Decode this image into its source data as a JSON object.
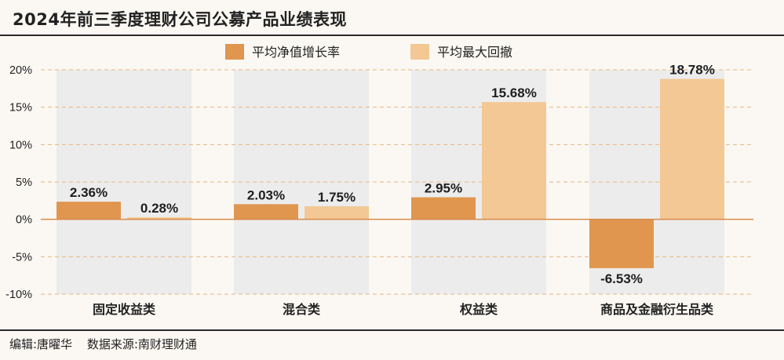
{
  "title": "2024年前三季度理财公司公募产品业绩表现",
  "footer": {
    "editor": "编辑:唐曜华",
    "source": "数据来源:南财理财通"
  },
  "colors": {
    "series1": "#e0964f",
    "series2": "#f3c894",
    "band": "#ececec",
    "grid": "#e6b583",
    "zero": "#d88a48"
  },
  "chart_data": {
    "type": "bar",
    "categories": [
      "固定收益类",
      "混合类",
      "权益类",
      "商品及金融衍生品类"
    ],
    "series": [
      {
        "name": "平均净值增长率",
        "values": [
          2.36,
          2.03,
          2.95,
          -6.53
        ],
        "labels": [
          "2.36%",
          "2.03%",
          "2.95%",
          "-6.53%"
        ]
      },
      {
        "name": "平均最大回撤",
        "values": [
          0.28,
          1.75,
          15.68,
          18.78
        ],
        "labels": [
          "0.28%",
          "1.75%",
          "15.68%",
          "18.78%"
        ]
      }
    ],
    "yticks": [
      "20%",
      "15%",
      "10%",
      "5%",
      "0%",
      "-5%",
      "-10%"
    ],
    "ylim": [
      -10,
      20
    ],
    "grid": true,
    "legend": "top-center"
  }
}
